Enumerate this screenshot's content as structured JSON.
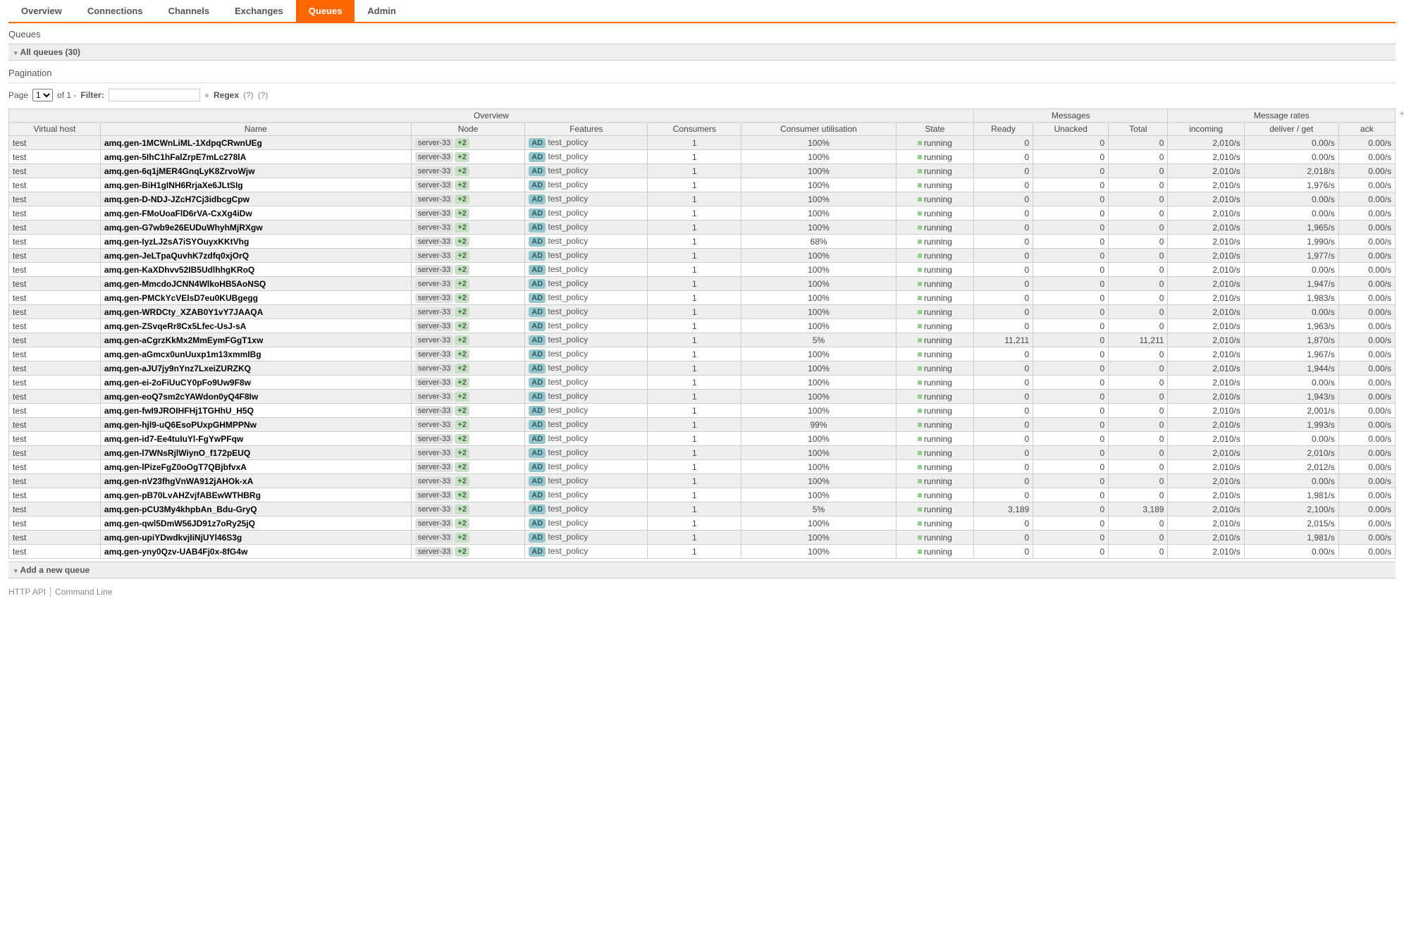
{
  "accent_color": "#ff6600",
  "tabs": [
    "Overview",
    "Connections",
    "Channels",
    "Exchanges",
    "Queues",
    "Admin"
  ],
  "active_tab": "Queues",
  "page_title": "Queues",
  "section_title": "All queues (30)",
  "pagination_heading": "Pagination",
  "page_label_pre": "Page",
  "page_options": [
    "1"
  ],
  "page_label_post": "of 1 -",
  "filter_label": "Filter:",
  "regex_label": "Regex",
  "help1": "(?)",
  "help2": "(?)",
  "toggle": "+/-",
  "group_headers": {
    "overview": "Overview",
    "messages": "Messages",
    "rates": "Message rates"
  },
  "columns": {
    "vhost": "Virtual host",
    "name": "Name",
    "node": "Node",
    "features": "Features",
    "consumers": "Consumers",
    "util": "Consumer utilisation",
    "state": "State",
    "ready": "Ready",
    "unacked": "Unacked",
    "total": "Total",
    "incoming": "incoming",
    "deliver": "deliver / get",
    "ack": "ack"
  },
  "node_name": "server-33",
  "plus_badge": "+2",
  "ad_badge": "AD",
  "policy": "test_policy",
  "state": "running",
  "incoming_rate": "2,010/s",
  "ack_rate": "0.00/s",
  "add_queue": "Add a new queue",
  "footer_api": "HTTP API",
  "footer_cli": "Command Line",
  "rows": [
    {
      "vhost": "test",
      "name": "amq.gen-1MCWnLiML-1XdpqCRwnUEg",
      "consumers": "1",
      "util": "100%",
      "ready": "0",
      "unacked": "0",
      "total": "0",
      "deliver": "0.00/s"
    },
    {
      "vhost": "test",
      "name": "amq.gen-5IhC1hFalZrpE7mLc278lA",
      "consumers": "1",
      "util": "100%",
      "ready": "0",
      "unacked": "0",
      "total": "0",
      "deliver": "0.00/s"
    },
    {
      "vhost": "test",
      "name": "amq.gen-6q1jMER4GnqLyK8ZrvoWjw",
      "consumers": "1",
      "util": "100%",
      "ready": "0",
      "unacked": "0",
      "total": "0",
      "deliver": "2,018/s"
    },
    {
      "vhost": "test",
      "name": "amq.gen-BiH1gINH6RrjaXe6JLtSIg",
      "consumers": "1",
      "util": "100%",
      "ready": "0",
      "unacked": "0",
      "total": "0",
      "deliver": "1,976/s"
    },
    {
      "vhost": "test",
      "name": "amq.gen-D-NDJ-JZcH7Cj3idbcgCpw",
      "consumers": "1",
      "util": "100%",
      "ready": "0",
      "unacked": "0",
      "total": "0",
      "deliver": "0.00/s"
    },
    {
      "vhost": "test",
      "name": "amq.gen-FMoUoaFlD6rVA-CxXg4iDw",
      "consumers": "1",
      "util": "100%",
      "ready": "0",
      "unacked": "0",
      "total": "0",
      "deliver": "0.00/s"
    },
    {
      "vhost": "test",
      "name": "amq.gen-G7wb9e26EUDuWhyhMjRXgw",
      "consumers": "1",
      "util": "100%",
      "ready": "0",
      "unacked": "0",
      "total": "0",
      "deliver": "1,965/s"
    },
    {
      "vhost": "test",
      "name": "amq.gen-IyzLJ2sA7iSYOuyxKKtVhg",
      "consumers": "1",
      "util": "68%",
      "ready": "0",
      "unacked": "0",
      "total": "0",
      "deliver": "1,990/s"
    },
    {
      "vhost": "test",
      "name": "amq.gen-JeLTpaQuvhK7zdfq0xjOrQ",
      "consumers": "1",
      "util": "100%",
      "ready": "0",
      "unacked": "0",
      "total": "0",
      "deliver": "1,977/s"
    },
    {
      "vhost": "test",
      "name": "amq.gen-KaXDhvv52IB5UdlhhgKRoQ",
      "consumers": "1",
      "util": "100%",
      "ready": "0",
      "unacked": "0",
      "total": "0",
      "deliver": "0.00/s"
    },
    {
      "vhost": "test",
      "name": "amq.gen-MmcdoJCNN4WlkoHB5AoNSQ",
      "consumers": "1",
      "util": "100%",
      "ready": "0",
      "unacked": "0",
      "total": "0",
      "deliver": "1,947/s"
    },
    {
      "vhost": "test",
      "name": "amq.gen-PMCkYcVElsD7eu0KUBgegg",
      "consumers": "1",
      "util": "100%",
      "ready": "0",
      "unacked": "0",
      "total": "0",
      "deliver": "1,983/s"
    },
    {
      "vhost": "test",
      "name": "amq.gen-WRDCty_XZAB0Y1vY7JAAQA",
      "consumers": "1",
      "util": "100%",
      "ready": "0",
      "unacked": "0",
      "total": "0",
      "deliver": "0.00/s"
    },
    {
      "vhost": "test",
      "name": "amq.gen-ZSvqeRr8Cx5Lfec-UsJ-sA",
      "consumers": "1",
      "util": "100%",
      "ready": "0",
      "unacked": "0",
      "total": "0",
      "deliver": "1,963/s"
    },
    {
      "vhost": "test",
      "name": "amq.gen-aCgrzKkMx2MmEymFGgT1xw",
      "consumers": "1",
      "util": "5%",
      "ready": "11,211",
      "unacked": "0",
      "total": "11,211",
      "deliver": "1,870/s"
    },
    {
      "vhost": "test",
      "name": "amq.gen-aGmcx0unUuxp1m13xmmIBg",
      "consumers": "1",
      "util": "100%",
      "ready": "0",
      "unacked": "0",
      "total": "0",
      "deliver": "1,967/s"
    },
    {
      "vhost": "test",
      "name": "amq.gen-aJU7jy9nYnz7LxeiZURZKQ",
      "consumers": "1",
      "util": "100%",
      "ready": "0",
      "unacked": "0",
      "total": "0",
      "deliver": "1,944/s"
    },
    {
      "vhost": "test",
      "name": "amq.gen-ei-2oFiUuCY0pFo9Uw9F8w",
      "consumers": "1",
      "util": "100%",
      "ready": "0",
      "unacked": "0",
      "total": "0",
      "deliver": "0.00/s"
    },
    {
      "vhost": "test",
      "name": "amq.gen-eoQ7sm2cYAWdon0yQ4F8Iw",
      "consumers": "1",
      "util": "100%",
      "ready": "0",
      "unacked": "0",
      "total": "0",
      "deliver": "1,943/s"
    },
    {
      "vhost": "test",
      "name": "amq.gen-fwI9JROIHFHj1TGHhU_H5Q",
      "consumers": "1",
      "util": "100%",
      "ready": "0",
      "unacked": "0",
      "total": "0",
      "deliver": "2,001/s"
    },
    {
      "vhost": "test",
      "name": "amq.gen-hjl9-uQ6EsoPUxpGHMPPNw",
      "consumers": "1",
      "util": "99%",
      "ready": "0",
      "unacked": "0",
      "total": "0",
      "deliver": "1,993/s"
    },
    {
      "vhost": "test",
      "name": "amq.gen-id7-Ee4tuIuYl-FgYwPFqw",
      "consumers": "1",
      "util": "100%",
      "ready": "0",
      "unacked": "0",
      "total": "0",
      "deliver": "0.00/s"
    },
    {
      "vhost": "test",
      "name": "amq.gen-l7WNsRjlWiynO_f172pEUQ",
      "consumers": "1",
      "util": "100%",
      "ready": "0",
      "unacked": "0",
      "total": "0",
      "deliver": "2,010/s"
    },
    {
      "vhost": "test",
      "name": "amq.gen-lPizeFgZ0oOgT7QBjbfvxA",
      "consumers": "1",
      "util": "100%",
      "ready": "0",
      "unacked": "0",
      "total": "0",
      "deliver": "2,012/s"
    },
    {
      "vhost": "test",
      "name": "amq.gen-nV23fhgVnWA912jAHOk-xA",
      "consumers": "1",
      "util": "100%",
      "ready": "0",
      "unacked": "0",
      "total": "0",
      "deliver": "0.00/s"
    },
    {
      "vhost": "test",
      "name": "amq.gen-pB70LvAHZvjfABEwWTHBRg",
      "consumers": "1",
      "util": "100%",
      "ready": "0",
      "unacked": "0",
      "total": "0",
      "deliver": "1,981/s"
    },
    {
      "vhost": "test",
      "name": "amq.gen-pCU3My4khpbAn_Bdu-GryQ",
      "consumers": "1",
      "util": "5%",
      "ready": "3,189",
      "unacked": "0",
      "total": "3,189",
      "deliver": "2,100/s"
    },
    {
      "vhost": "test",
      "name": "amq.gen-qwl5DmW56JD91z7oRy25jQ",
      "consumers": "1",
      "util": "100%",
      "ready": "0",
      "unacked": "0",
      "total": "0",
      "deliver": "2,015/s"
    },
    {
      "vhost": "test",
      "name": "amq.gen-upiYDwdkvjIiNjUYl46S3g",
      "consumers": "1",
      "util": "100%",
      "ready": "0",
      "unacked": "0",
      "total": "0",
      "deliver": "1,981/s"
    },
    {
      "vhost": "test",
      "name": "amq.gen-yny0Qzv-UAB4Fj0x-8fG4w",
      "consumers": "1",
      "util": "100%",
      "ready": "0",
      "unacked": "0",
      "total": "0",
      "deliver": "0.00/s"
    }
  ]
}
